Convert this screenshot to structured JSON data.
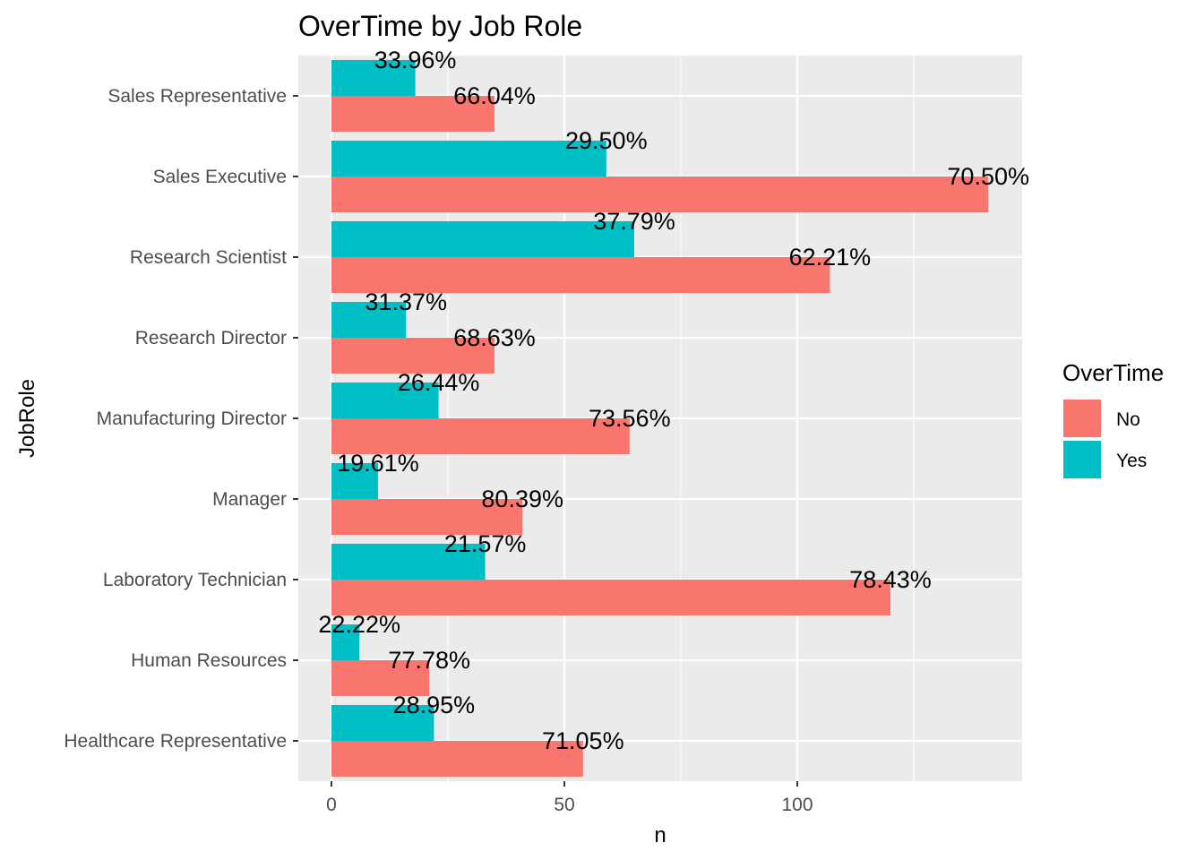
{
  "chart_data": {
    "type": "bar",
    "orientation": "horizontal",
    "title": "OverTime by Job Role",
    "xlabel": "n",
    "ylabel": "JobRole",
    "xlim": [
      0,
      148
    ],
    "x_ticks": [
      0,
      50,
      100
    ],
    "grid": true,
    "legend_position": "right",
    "legend_title": "OverTime",
    "categories": [
      "Healthcare Representative",
      "Human Resources",
      "Laboratory Technician",
      "Manager",
      "Manufacturing Director",
      "Research Director",
      "Research Scientist",
      "Sales Executive",
      "Sales Representative"
    ],
    "series": [
      {
        "name": "No",
        "color": "#F8766D",
        "values": [
          54,
          21,
          120,
          41,
          64,
          35,
          107,
          141,
          35
        ],
        "labels": [
          "71.05%",
          "77.78%",
          "78.43%",
          "80.39%",
          "73.56%",
          "68.63%",
          "62.21%",
          "70.50%",
          "66.04%"
        ]
      },
      {
        "name": "Yes",
        "color": "#00BFC4",
        "values": [
          22,
          6,
          33,
          10,
          23,
          16,
          65,
          59,
          18
        ],
        "labels": [
          "28.95%",
          "22.22%",
          "21.57%",
          "19.61%",
          "26.44%",
          "31.37%",
          "37.79%",
          "29.50%",
          "33.96%"
        ]
      }
    ]
  }
}
